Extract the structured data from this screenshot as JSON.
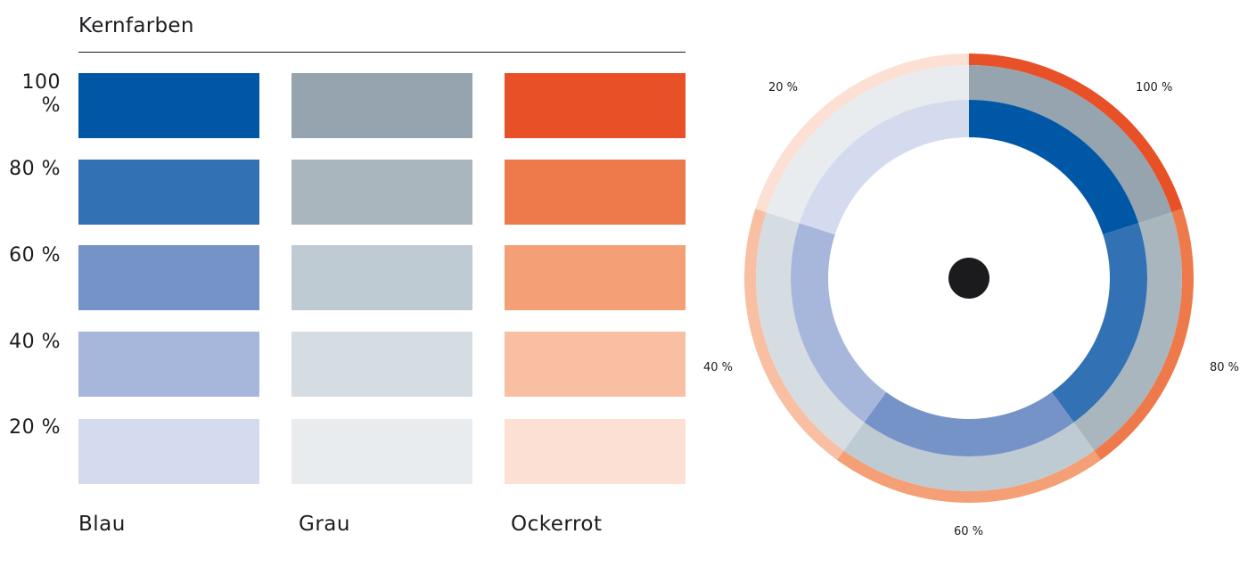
{
  "title": "Kernfarben",
  "row_labels": [
    "100 %",
    "80 %",
    "60 %",
    "40 %",
    "20 %"
  ],
  "columns": [
    {
      "name": "Blau",
      "colors": [
        "#0057a6",
        "#3272b4",
        "#7693c8",
        "#a7b6db",
        "#d4dbee"
      ]
    },
    {
      "name": "Grau",
      "colors": [
        "#95a4ae",
        "#a9b6be",
        "#bfcbd2",
        "#d5dde3",
        "#e8ecef"
      ]
    },
    {
      "name": "Ockerrot",
      "colors": [
        "#e85127",
        "#ee7a4c",
        "#f49f75",
        "#f9bfa3",
        "#fbe0d3"
      ]
    }
  ],
  "wheel": {
    "labels": {
      "p100": "100 %",
      "p80": "80 %",
      "p60": "60 %",
      "p40": "40 %",
      "p20": "20 %"
    },
    "steps": [
      100,
      80,
      60,
      40,
      20
    ]
  }
}
